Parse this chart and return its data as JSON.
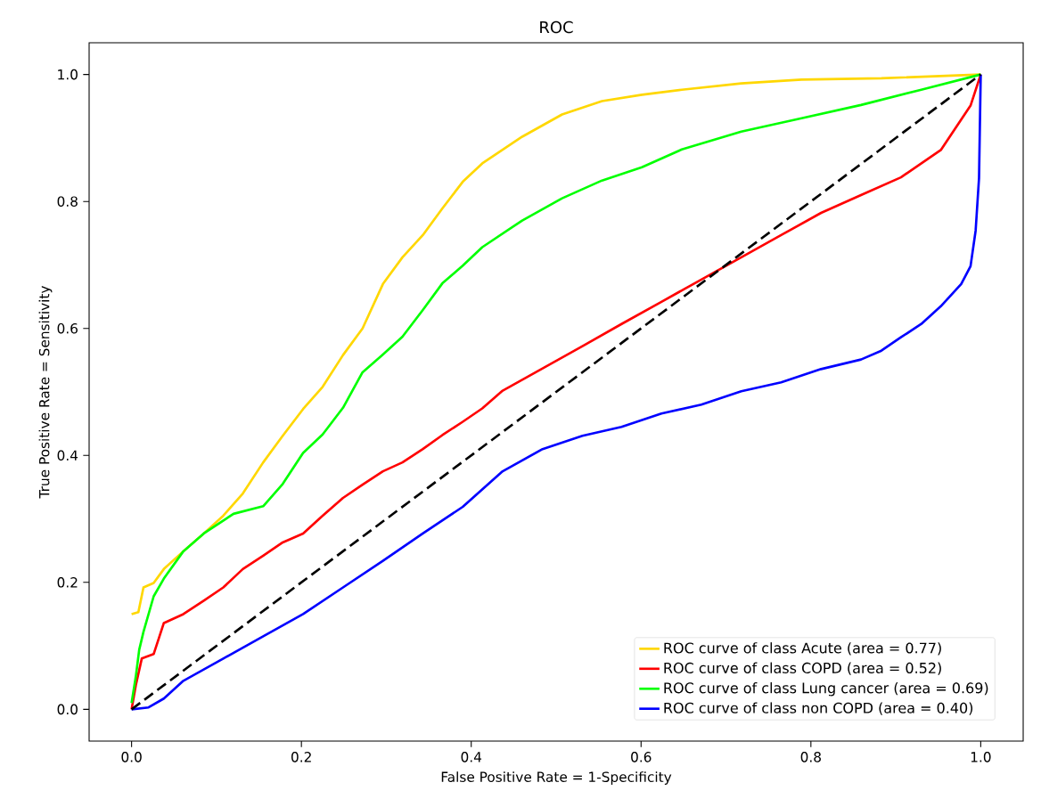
{
  "chart_data": {
    "type": "line",
    "title": "ROC",
    "xlabel": "False Positive Rate = 1-Specificity",
    "ylabel": "True Positive Rate = Sensitivity",
    "xlim": [
      -0.05,
      1.05
    ],
    "ylim": [
      -0.05,
      1.05
    ],
    "xticks": [
      {
        "value": 0,
        "label": "0.0"
      },
      {
        "value": 0.2,
        "label": "0.2"
      },
      {
        "value": 0.4,
        "label": "0.4"
      },
      {
        "value": 0.6,
        "label": "0.6"
      },
      {
        "value": 0.8,
        "label": "0.8"
      },
      {
        "value": 1,
        "label": "1.0"
      }
    ],
    "yticks": [
      {
        "value": 0,
        "label": "0.0"
      },
      {
        "value": 0.2,
        "label": "0.2"
      },
      {
        "value": 0.4,
        "label": "0.4"
      },
      {
        "value": 0.6,
        "label": "0.6"
      },
      {
        "value": 0.8,
        "label": "0.8"
      },
      {
        "value": 1,
        "label": "1.0"
      }
    ],
    "legend": "bottom right",
    "grid": false,
    "marker": "none",
    "series": [
      {
        "name": "ROC curve of class Acute (area = 0.77)",
        "color": "#ffd700",
        "x": [
          0,
          0.008,
          0.014,
          0.026,
          0.038,
          0.061,
          0.085,
          0.108,
          0.131,
          0.155,
          0.178,
          0.202,
          0.225,
          0.249,
          0.272,
          0.296,
          0.319,
          0.343,
          0.366,
          0.39,
          0.413,
          0.46,
          0.507,
          0.554,
          0.601,
          0.648,
          0.718,
          0.789,
          0.883,
          1.0
        ],
        "values": [
          0.15,
          0.153,
          0.192,
          0.199,
          0.221,
          0.249,
          0.277,
          0.305,
          0.34,
          0.389,
          0.431,
          0.473,
          0.508,
          0.558,
          0.6,
          0.67,
          0.712,
          0.747,
          0.789,
          0.831,
          0.86,
          0.902,
          0.937,
          0.958,
          0.968,
          0.976,
          0.986,
          0.992,
          0.994,
          1.0
        ]
      },
      {
        "name": "ROC curve of class COPD (area = 0.52)",
        "color": "#ff0000",
        "x": [
          0,
          0.005,
          0.012,
          0.026,
          0.038,
          0.061,
          0.085,
          0.108,
          0.131,
          0.155,
          0.178,
          0.202,
          0.225,
          0.249,
          0.272,
          0.296,
          0.319,
          0.343,
          0.366,
          0.39,
          0.413,
          0.437,
          0.484,
          0.531,
          0.577,
          0.624,
          0.671,
          0.718,
          0.765,
          0.812,
          0.859,
          0.906,
          0.953,
          0.988,
          1.0
        ],
        "values": [
          0,
          0.038,
          0.08,
          0.087,
          0.136,
          0.15,
          0.171,
          0.192,
          0.221,
          0.242,
          0.263,
          0.277,
          0.305,
          0.333,
          0.354,
          0.375,
          0.389,
          0.41,
          0.432,
          0.453,
          0.474,
          0.502,
          0.537,
          0.572,
          0.607,
          0.642,
          0.677,
          0.712,
          0.747,
          0.782,
          0.81,
          0.838,
          0.881,
          0.951,
          1.0
        ]
      },
      {
        "name": "ROC curve of class Lung cancer (area = 0.69)",
        "color": "#00ff00",
        "x": [
          0,
          0.005,
          0.009,
          0.014,
          0.026,
          0.038,
          0.061,
          0.085,
          0.12,
          0.155,
          0.178,
          0.202,
          0.225,
          0.249,
          0.272,
          0.296,
          0.319,
          0.343,
          0.366,
          0.39,
          0.413,
          0.46,
          0.507,
          0.554,
          0.601,
          0.648,
          0.718,
          0.789,
          0.859,
          0.93,
          1.0
        ],
        "values": [
          0.01,
          0.052,
          0.094,
          0.122,
          0.178,
          0.206,
          0.249,
          0.277,
          0.308,
          0.32,
          0.355,
          0.404,
          0.433,
          0.475,
          0.531,
          0.559,
          0.587,
          0.629,
          0.671,
          0.699,
          0.728,
          0.77,
          0.805,
          0.833,
          0.854,
          0.882,
          0.91,
          0.931,
          0.952,
          0.976,
          1.0
        ]
      },
      {
        "name": "ROC curve of class non COPD (area = 0.40)",
        "color": "#0000ff",
        "x": [
          0,
          0.02,
          0.038,
          0.061,
          0.108,
          0.155,
          0.202,
          0.249,
          0.296,
          0.343,
          0.39,
          0.437,
          0.484,
          0.531,
          0.577,
          0.624,
          0.671,
          0.718,
          0.765,
          0.812,
          0.859,
          0.883,
          0.906,
          0.93,
          0.953,
          0.977,
          0.988,
          0.994,
          0.998,
          1.0
        ],
        "values": [
          0,
          0.003,
          0.017,
          0.045,
          0.08,
          0.115,
          0.15,
          0.192,
          0.234,
          0.277,
          0.319,
          0.375,
          0.41,
          0.431,
          0.445,
          0.466,
          0.48,
          0.501,
          0.515,
          0.536,
          0.551,
          0.565,
          0.586,
          0.607,
          0.635,
          0.67,
          0.698,
          0.754,
          0.837,
          1.0
        ]
      },
      {
        "color": "#000000",
        "line_style": "dashed",
        "x": [
          0,
          1
        ],
        "values": [
          0,
          1
        ]
      }
    ]
  }
}
